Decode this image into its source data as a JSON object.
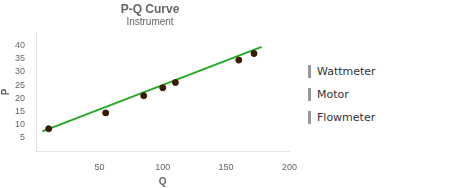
{
  "chart_data": {
    "type": "scatter",
    "title": "P-Q Curve",
    "subtitle": "Instrument",
    "x_label": "Q",
    "y_label": "P",
    "x": [
      10,
      55,
      85,
      100,
      110,
      160,
      172
    ],
    "values": [
      8.5,
      14.5,
      21,
      24,
      26,
      34.5,
      37
    ],
    "color": "#3a1a00",
    "fit_line": {
      "x": [
        5,
        178
      ],
      "values": [
        7.5,
        39.5
      ],
      "color": "#22aa22"
    },
    "xlim": [
      0,
      200
    ],
    "xticks": [
      50,
      100,
      150,
      200
    ],
    "ylim": [
      0,
      45
    ],
    "yticks": [
      5,
      10,
      15,
      20,
      25,
      30,
      35,
      40
    ],
    "grid": false,
    "annotations": [
      "Wattmeter",
      "Motor",
      "Flowmeter"
    ]
  }
}
